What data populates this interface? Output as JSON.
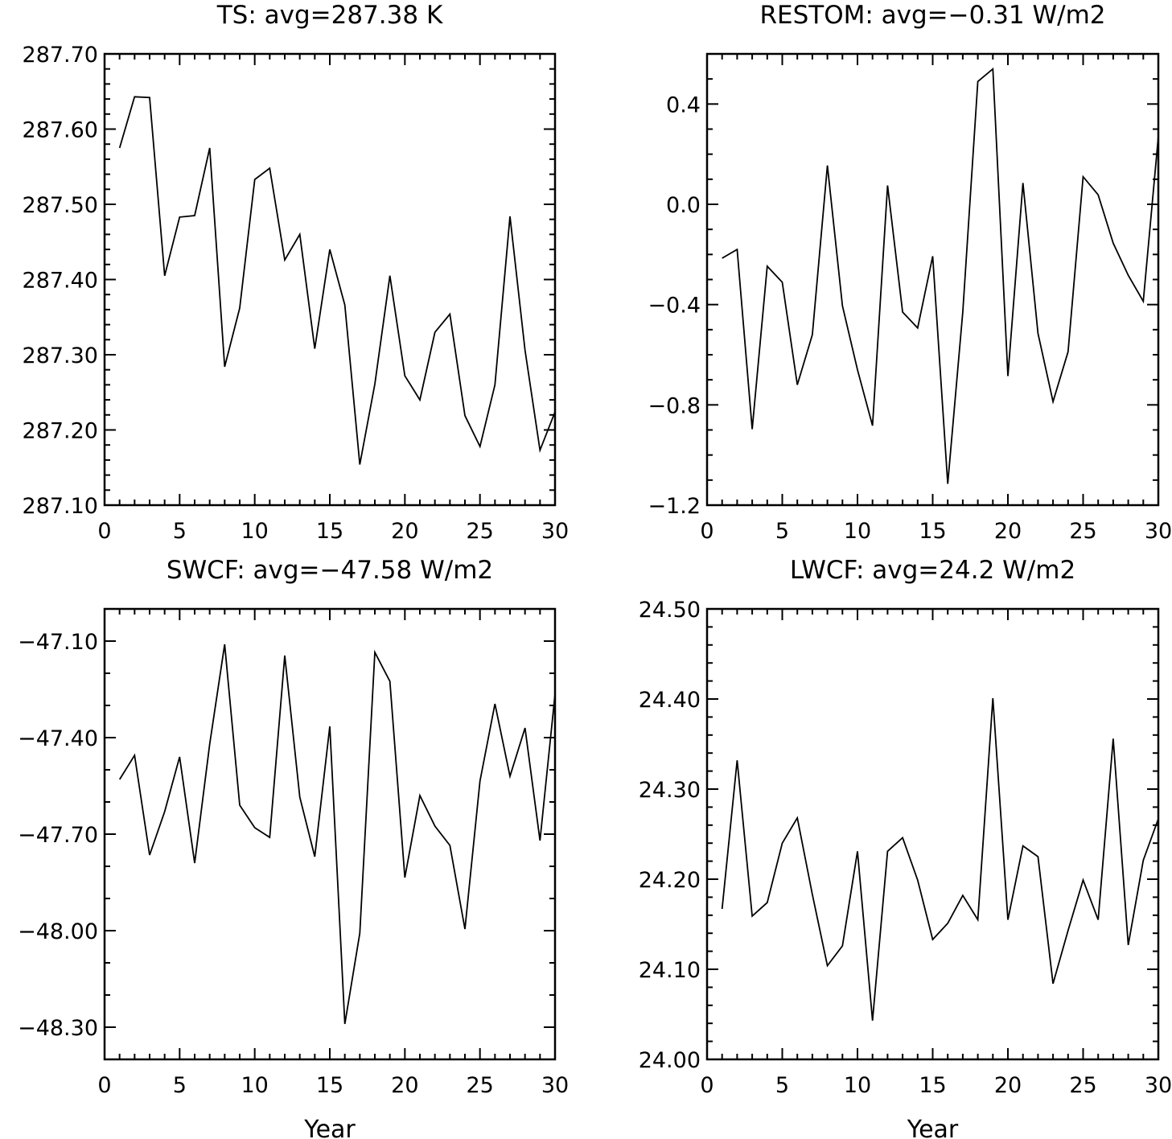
{
  "chart_data": [
    {
      "type": "line",
      "title": "TS: avg=287.38 K",
      "xlabel": "",
      "ylabel": "",
      "xlim": [
        0,
        30
      ],
      "ylim": [
        287.1,
        287.7
      ],
      "xticks": [
        0,
        5,
        10,
        15,
        20,
        25,
        30
      ],
      "xtick_labels": [
        "0",
        "5",
        "10",
        "15",
        "20",
        "25",
        "30"
      ],
      "yticks": [
        287.1,
        287.2,
        287.3,
        287.4,
        287.5,
        287.6,
        287.7
      ],
      "ytick_labels": [
        "287.10",
        "287.20",
        "287.30",
        "287.40",
        "287.50",
        "287.60",
        "287.70"
      ],
      "yminor_step": 0.02,
      "x": [
        1,
        2,
        3,
        4,
        5,
        6,
        7,
        8,
        9,
        10,
        11,
        12,
        13,
        14,
        15,
        16,
        17,
        18,
        19,
        20,
        21,
        22,
        23,
        24,
        25,
        26,
        27,
        28,
        29,
        30
      ],
      "values": [
        287.575,
        287.643,
        287.642,
        287.405,
        287.483,
        287.485,
        287.575,
        287.284,
        287.362,
        287.533,
        287.548,
        287.426,
        287.46,
        287.308,
        287.44,
        287.366,
        287.154,
        287.261,
        287.405,
        287.272,
        287.24,
        287.33,
        287.354,
        287.219,
        287.178,
        287.26,
        287.484,
        287.306,
        287.173,
        287.224
      ],
      "color": "#000000"
    },
    {
      "type": "line",
      "title": "RESTOM: avg=−0.31 W/m2",
      "xlabel": "",
      "ylabel": "",
      "xlim": [
        0,
        30
      ],
      "ylim": [
        -1.2,
        0.6
      ],
      "xticks": [
        0,
        5,
        10,
        15,
        20,
        25,
        30
      ],
      "xtick_labels": [
        "0",
        "5",
        "10",
        "15",
        "20",
        "25",
        "30"
      ],
      "yticks": [
        -1.2,
        -0.8,
        -0.4,
        0.0,
        0.4
      ],
      "ytick_labels": [
        "−1.2",
        "−0.8",
        "−0.4",
        "0.0",
        "0.4"
      ],
      "yminor_step": 0.1,
      "x": [
        1,
        2,
        3,
        4,
        5,
        6,
        7,
        8,
        9,
        10,
        11,
        12,
        13,
        14,
        15,
        16,
        17,
        18,
        19,
        20,
        21,
        22,
        23,
        24,
        25,
        26,
        27,
        28,
        29,
        30
      ],
      "values": [
        -0.215,
        -0.18,
        -0.897,
        -0.247,
        -0.311,
        -0.72,
        -0.52,
        0.155,
        -0.405,
        -0.66,
        -0.883,
        0.075,
        -0.43,
        -0.493,
        -0.207,
        -1.115,
        -0.43,
        0.49,
        0.54,
        -0.685,
        0.085,
        -0.515,
        -0.787,
        -0.588,
        0.11,
        0.038,
        -0.155,
        -0.283,
        -0.387,
        0.27
      ],
      "color": "#000000"
    },
    {
      "type": "line",
      "title": "SWCF: avg=−47.58 W/m2",
      "xlabel": "Year",
      "ylabel": "",
      "xlim": [
        0,
        30
      ],
      "ylim": [
        -48.4,
        -47.0
      ],
      "xticks": [
        0,
        5,
        10,
        15,
        20,
        25,
        30
      ],
      "xtick_labels": [
        "0",
        "5",
        "10",
        "15",
        "20",
        "25",
        "30"
      ],
      "yticks": [
        -48.3,
        -48.0,
        -47.7,
        -47.4,
        -47.1
      ],
      "ytick_labels": [
        "−48.30",
        "−48.00",
        "−47.70",
        "−47.40",
        "−47.10"
      ],
      "yminor_step": 0.1,
      "x": [
        1,
        2,
        3,
        4,
        5,
        6,
        7,
        8,
        9,
        10,
        11,
        12,
        13,
        14,
        15,
        16,
        17,
        18,
        19,
        20,
        21,
        22,
        23,
        24,
        25,
        26,
        27,
        28,
        29,
        30
      ],
      "values": [
        -47.53,
        -47.455,
        -47.765,
        -47.63,
        -47.46,
        -47.79,
        -47.42,
        -47.11,
        -47.61,
        -47.68,
        -47.71,
        -47.145,
        -47.585,
        -47.77,
        -47.365,
        -48.29,
        -48.008,
        -47.135,
        -47.225,
        -47.835,
        -47.58,
        -47.675,
        -47.735,
        -47.995,
        -47.535,
        -47.295,
        -47.52,
        -47.37,
        -47.72,
        -47.265
      ],
      "color": "#000000"
    },
    {
      "type": "line",
      "title": "LWCF: avg=24.2 W/m2",
      "xlabel": "Year",
      "ylabel": "",
      "xlim": [
        0,
        30
      ],
      "ylim": [
        24.0,
        24.5
      ],
      "xticks": [
        0,
        5,
        10,
        15,
        20,
        25,
        30
      ],
      "xtick_labels": [
        "0",
        "5",
        "10",
        "15",
        "20",
        "25",
        "30"
      ],
      "yticks": [
        24.0,
        24.1,
        24.2,
        24.3,
        24.4,
        24.5
      ],
      "ytick_labels": [
        "24.00",
        "24.10",
        "24.20",
        "24.30",
        "24.40",
        "24.50"
      ],
      "yminor_step": 0.02,
      "x": [
        1,
        2,
        3,
        4,
        5,
        6,
        7,
        8,
        9,
        10,
        11,
        12,
        13,
        14,
        15,
        16,
        17,
        18,
        19,
        20,
        21,
        22,
        23,
        24,
        25,
        26,
        27,
        28,
        29,
        30
      ],
      "values": [
        24.167,
        24.332,
        24.159,
        24.174,
        24.24,
        24.268,
        24.183,
        24.104,
        24.126,
        24.231,
        24.043,
        24.231,
        24.246,
        24.199,
        24.133,
        24.151,
        24.182,
        24.155,
        24.401,
        24.155,
        24.237,
        24.225,
        24.084,
        24.143,
        24.199,
        24.155,
        24.356,
        24.127,
        24.221,
        24.267
      ],
      "color": "#000000"
    }
  ]
}
